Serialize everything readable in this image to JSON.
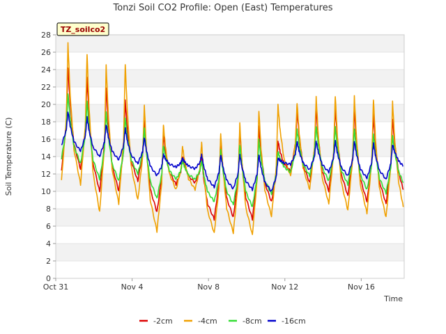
{
  "chart_data": {
    "type": "line",
    "title": "Tonzi Soil CO2 Profile: Open (East) Temperatures",
    "xlabel": "Time",
    "ylabel": "Soil Temperature (C)",
    "badge": "TZ_soilco2",
    "ylim": [
      0,
      28
    ],
    "yticks": [
      0,
      2,
      4,
      6,
      8,
      10,
      12,
      14,
      16,
      18,
      20,
      22,
      24,
      26,
      28
    ],
    "xlim": [
      0,
      18.25
    ],
    "xticks": [
      {
        "label": "Oct 31",
        "day": 0
      },
      {
        "label": "Nov 4",
        "day": 4
      },
      {
        "label": "Nov 8",
        "day": 8
      },
      {
        "label": "Nov 12",
        "day": 12
      },
      {
        "label": "Nov 16",
        "day": 16
      }
    ],
    "grid": "horizontal bands",
    "legend_position": "bottom",
    "days": [
      0,
      1,
      2,
      3,
      4,
      5,
      6,
      7,
      8,
      9,
      10,
      11,
      12,
      13,
      14,
      15,
      16,
      17
    ],
    "series": [
      {
        "name": "-2cm",
        "color": "#dd0000",
        "min": [
          12.4,
          12.5,
          10.0,
          10.0,
          11.2,
          7.6,
          10.8,
          11.0,
          6.8,
          7.0,
          6.8,
          8.8,
          12.3,
          11.0,
          10.0,
          9.5,
          8.8,
          8.6
        ],
        "max": [
          24.3,
          23.0,
          22.0,
          20.4,
          18.2,
          16.5,
          14.0,
          14.0,
          16.0,
          17.0,
          17.5,
          15.8,
          19.2,
          19.5,
          19.6,
          19.4,
          18.8,
          18.4
        ],
        "end": 10.2
      },
      {
        "name": "-4cm",
        "color": "#f0a000",
        "min": [
          11.2,
          10.8,
          7.6,
          8.6,
          9.0,
          5.4,
          10.2,
          10.2,
          5.2,
          5.2,
          5.0,
          7.1,
          11.8,
          10.2,
          8.6,
          7.8,
          7.5,
          7.0
        ],
        "max": [
          27.0,
          25.8,
          24.5,
          24.6,
          19.9,
          17.6,
          15.2,
          15.6,
          16.7,
          17.8,
          19.3,
          19.9,
          20.2,
          20.8,
          21.0,
          20.9,
          20.6,
          20.3
        ],
        "end": 8.2
      },
      {
        "name": "-8cm",
        "color": "#33dd33",
        "min": [
          13.8,
          13.2,
          11.4,
          11.2,
          12.0,
          9.2,
          11.4,
          11.4,
          8.8,
          8.5,
          8.2,
          9.7,
          12.2,
          11.8,
          11.2,
          10.8,
          10.2,
          9.8
        ],
        "max": [
          21.2,
          20.4,
          19.1,
          18.5,
          17.2,
          15.3,
          13.5,
          13.5,
          14.7,
          15.4,
          15.9,
          14.6,
          17.1,
          17.5,
          17.4,
          17.2,
          16.6,
          16.4
        ],
        "end": 11.0
      },
      {
        "name": "-16cm",
        "color": "#0000cc",
        "min": [
          15.3,
          14.6,
          14.0,
          13.6,
          13.2,
          11.8,
          12.8,
          12.6,
          10.5,
          10.3,
          10.2,
          10.0,
          13.1,
          12.5,
          12.2,
          11.8,
          11.5,
          11.4
        ],
        "max": [
          19.2,
          18.5,
          17.7,
          17.2,
          16.2,
          14.2,
          13.8,
          14.2,
          14.2,
          14.2,
          14.2,
          13.8,
          15.7,
          15.8,
          15.8,
          15.8,
          15.5,
          15.4
        ],
        "end": 12.9
      }
    ]
  }
}
